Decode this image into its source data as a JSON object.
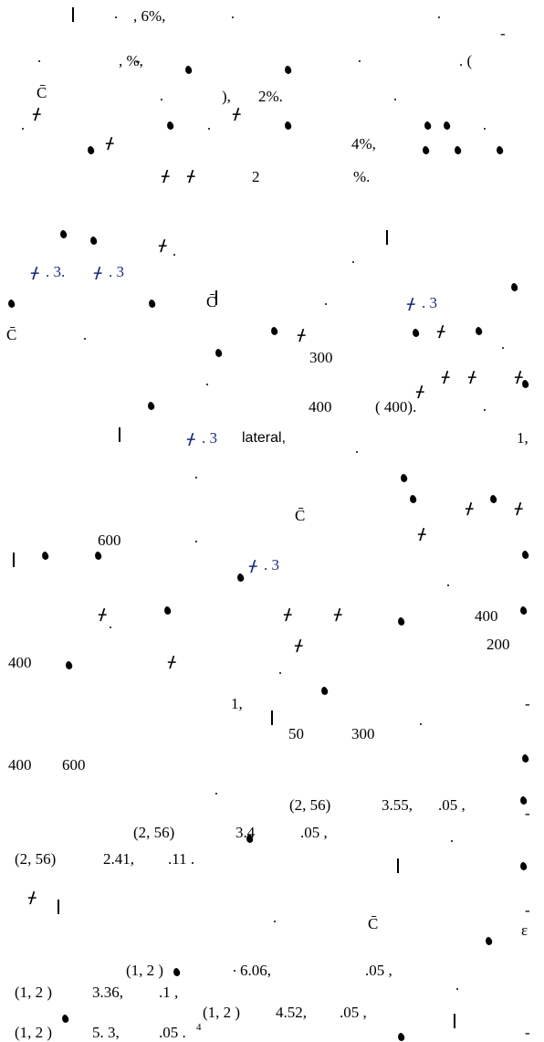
{
  "page": {
    "para1": {
      "l1a": ", 6%,",
      "l2a": ", %,",
      "l2b": ". (",
      "l3a": "),",
      "l3b": "2%.",
      "l5a": "4%,",
      "l6a": "2",
      "l6b": "%."
    },
    "para2": {
      "fig_a": ". 3.",
      "fig_b": ". 3",
      "fig_c": ". 3",
      "n300a": "300",
      "n400a": "400",
      "n400b": "( 400).",
      "fig_d": ". 3",
      "lateral": "lateral,",
      "one_a": "1,",
      "n600a": "600",
      "fig_e": ". 3",
      "n400c": "400",
      "n200": "200",
      "n400d": "400",
      "one_b": "1,",
      "n50": "50",
      "n300b": "300",
      "n400e": "400",
      "n600b": "600"
    },
    "stats": {
      "s1a": "(2, 56)",
      "s1b": "3.55,",
      "s1c": ".05 ,",
      "s2a": "(2, 56)",
      "s2b": "3.4",
      "s2c": ".05 ,",
      "s3a": "(2, 56)",
      "s3b": "2.41,",
      "s3c": ".11 .",
      "s4a": "(1, 2 )",
      "s4b": "6.06,",
      "s4c": ".05 ,",
      "s5a": "(1, 2 )",
      "s5b": "3.36,",
      "s5c": ".1 ,",
      "s6a": "(1, 2 )",
      "s6b": "4.52,",
      "s6c": ".05 ,",
      "s7a": "(1, 2 )",
      "s7b": "5. 3,",
      "s7c": ".05 .",
      "s7sup": "4"
    }
  }
}
